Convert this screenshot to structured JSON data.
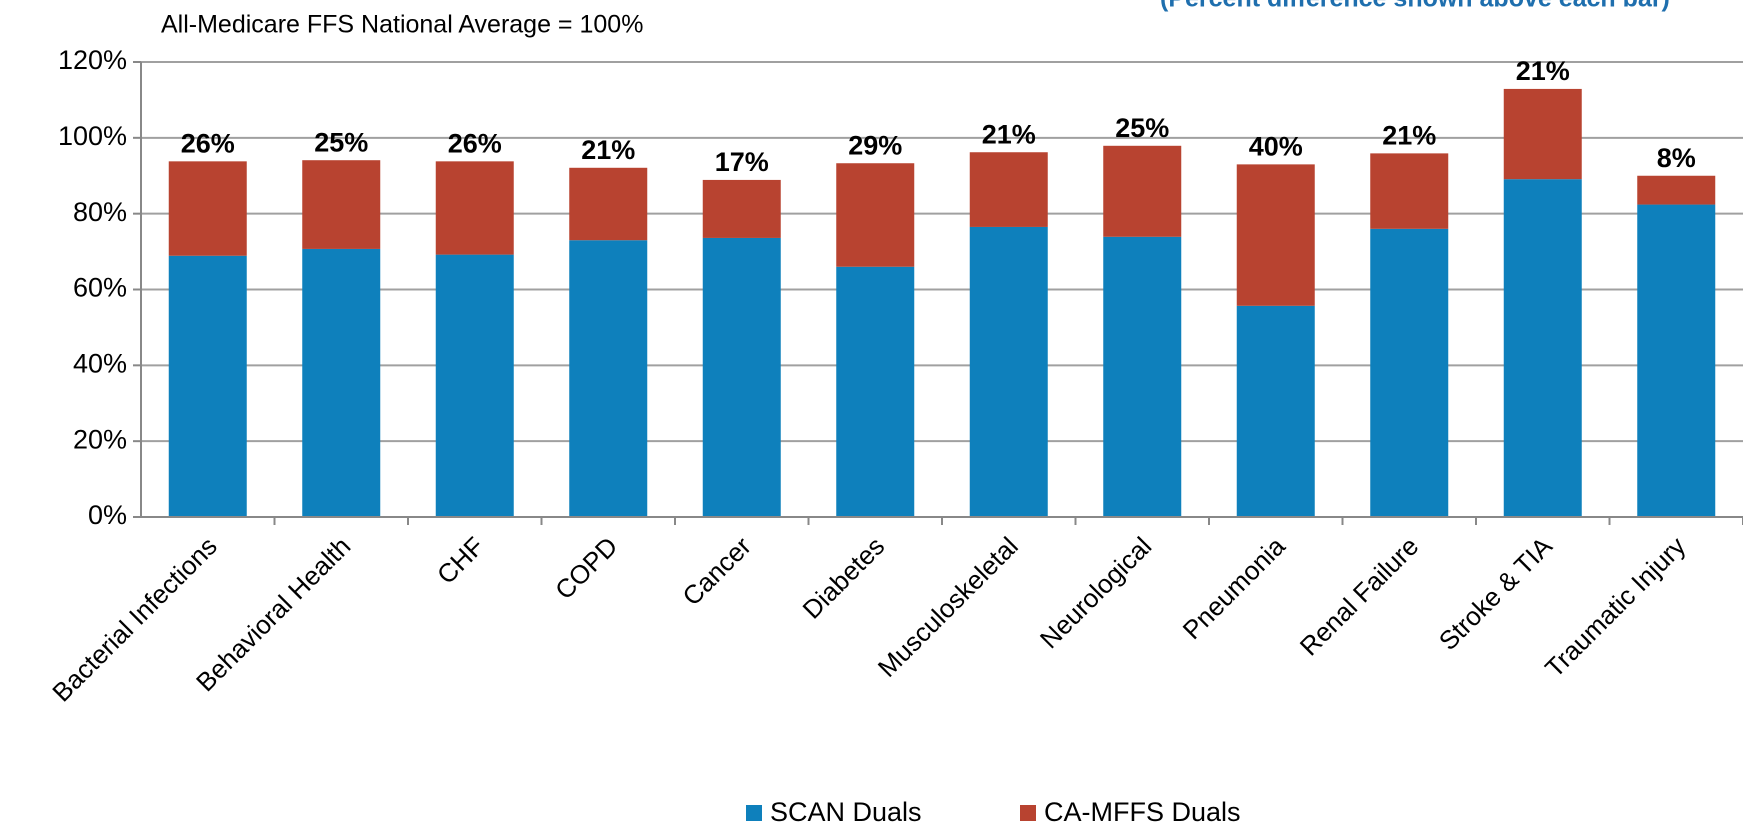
{
  "chart_data": {
    "type": "stacked_bar",
    "subtitle": "All-Medicare FFS National Average = 100%",
    "note": "(Percent difference shown above each bar)",
    "categories": [
      "Bacterial Infections",
      "Behavioral Health",
      "CHF",
      "COPD",
      "Cancer",
      "Diabetes",
      "Musculoskeletal",
      "Neurological",
      "Pneumonia",
      "Renal Failure",
      "Stroke & TIA",
      "Traumatic Injury"
    ],
    "series": [
      {
        "name": "SCAN Duals",
        "color": "#0e80bc",
        "values": [
          68.9,
          70.7,
          69.2,
          73.0,
          73.6,
          66.0,
          76.5,
          73.9,
          55.7,
          76.0,
          89.1,
          82.4
        ]
      },
      {
        "name": "CA-MFFS Duals",
        "color": "#b84330",
        "values": [
          24.9,
          23.4,
          24.6,
          19.1,
          15.3,
          27.3,
          19.7,
          24.0,
          37.3,
          19.9,
          23.8,
          7.6
        ]
      }
    ],
    "difference_labels": [
      "26%",
      "25%",
      "26%",
      "21%",
      "17%",
      "29%",
      "21%",
      "25%",
      "40%",
      "21%",
      "21%",
      "8%"
    ],
    "ylim": [
      0,
      120
    ],
    "yticks": [
      {
        "value": 0,
        "label": "0%"
      },
      {
        "value": 20,
        "label": "20%"
      },
      {
        "value": 40,
        "label": "40%"
      },
      {
        "value": 60,
        "label": "60%"
      },
      {
        "value": 80,
        "label": "80%"
      },
      {
        "value": 100,
        "label": "100%"
      },
      {
        "value": 120,
        "label": "120%"
      }
    ],
    "grid": true,
    "legend": "bottom"
  }
}
